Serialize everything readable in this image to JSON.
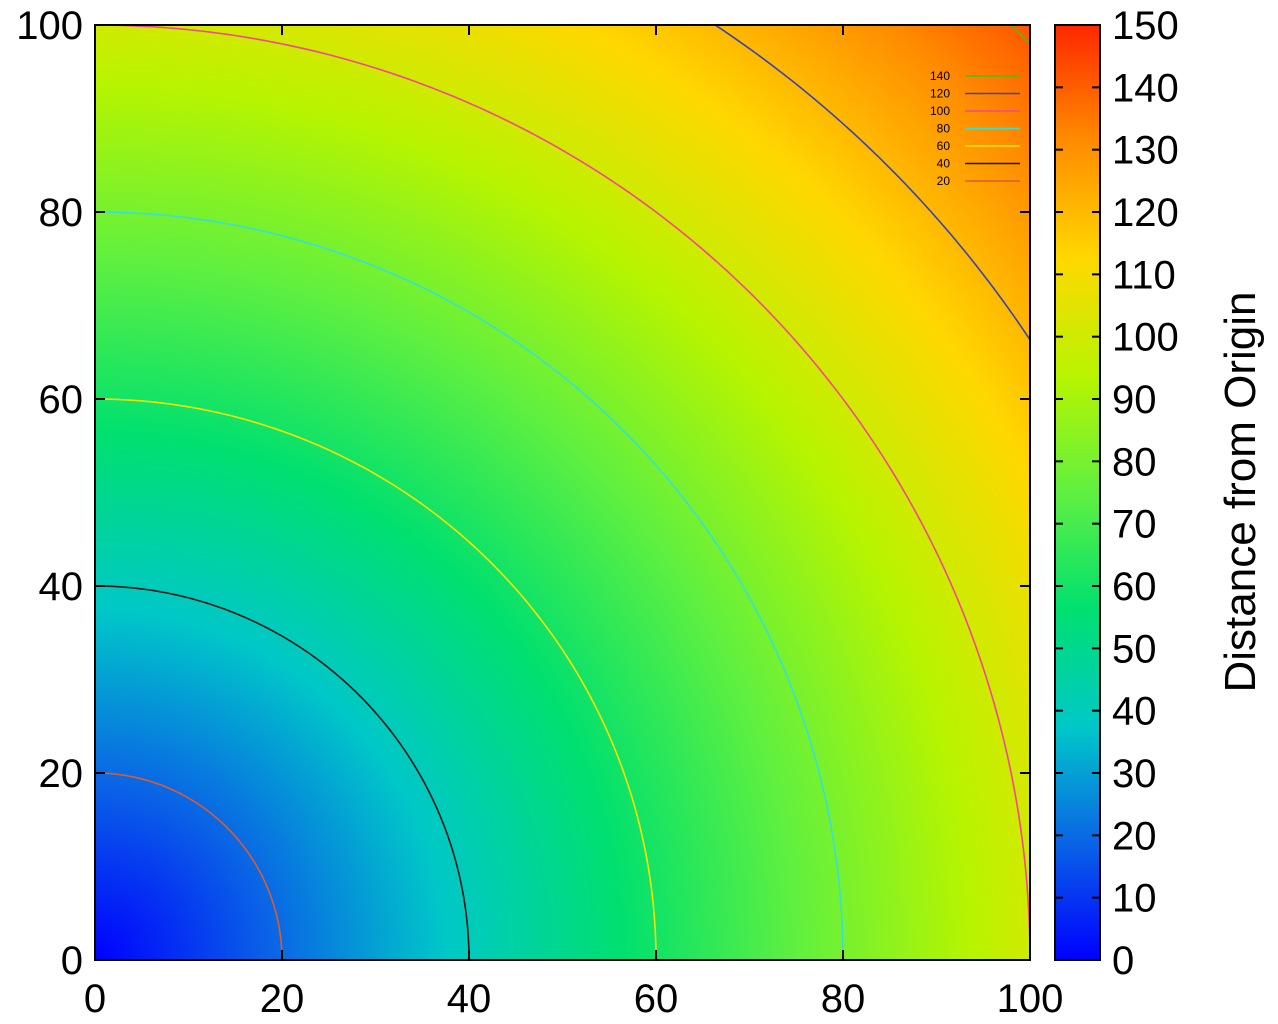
{
  "chart_data": {
    "type": "heatmap",
    "title": "",
    "xlabel": "",
    "ylabel": "",
    "xlim": [
      0,
      100
    ],
    "ylim": [
      0,
      100
    ],
    "x_ticks": [
      "0",
      "20",
      "40",
      "60",
      "80",
      "100"
    ],
    "y_ticks": [
      "0",
      "20",
      "40",
      "60",
      "80",
      "100"
    ],
    "function": "sqrt(x^2 + y^2)",
    "colorbar": {
      "label": "Distance from Origin",
      "range": [
        0,
        150
      ],
      "ticks": [
        "0",
        "10",
        "20",
        "30",
        "40",
        "50",
        "60",
        "70",
        "80",
        "90",
        "100",
        "110",
        "120",
        "130",
        "140",
        "150"
      ],
      "gradient": [
        "#0000ff",
        "#0a64e6",
        "#00c8c8",
        "#00e070",
        "#60f040",
        "#b8f400",
        "#ffd800",
        "#ff8c00",
        "#ff2800"
      ]
    },
    "contours": [
      {
        "level": 140,
        "label": "140",
        "color": "#49c014"
      },
      {
        "level": 120,
        "label": "120",
        "color": "#3b42b8"
      },
      {
        "level": 100,
        "label": "100",
        "color": "#f5478e"
      },
      {
        "level": 80,
        "label": "80",
        "color": "#35e1d5"
      },
      {
        "level": 60,
        "label": "60",
        "color": "#f5e600"
      },
      {
        "level": 40,
        "label": "40",
        "color": "#1a1a1a"
      },
      {
        "level": 20,
        "label": "20",
        "color": "#d95c35"
      }
    ],
    "legend_position": "top-right",
    "grid": false
  }
}
